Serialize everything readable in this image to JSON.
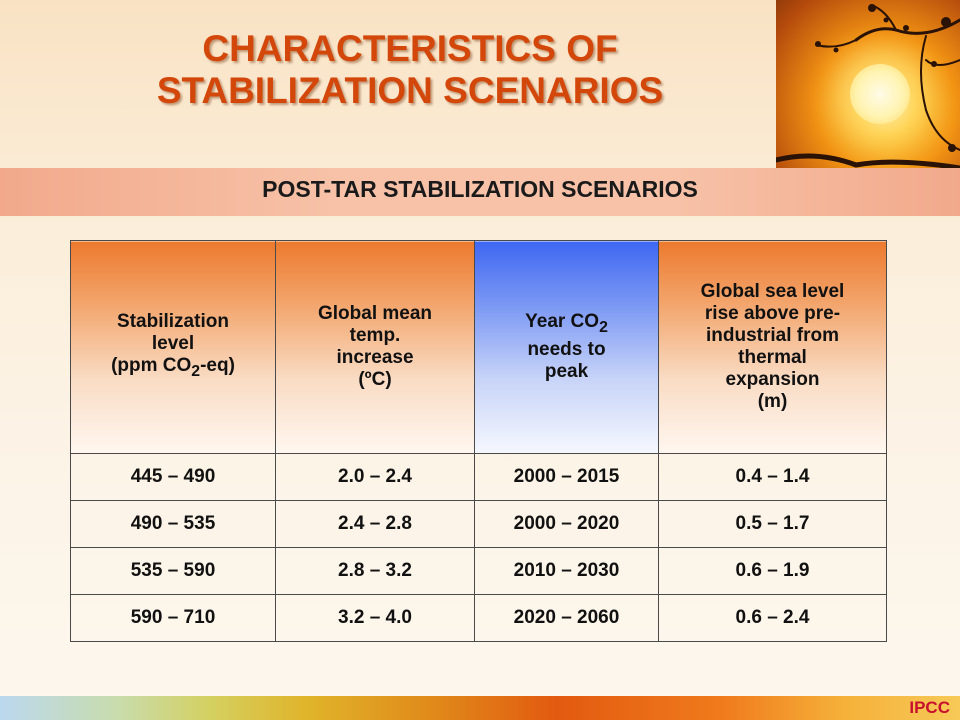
{
  "title_line1": "CHARACTERISTICS OF",
  "title_line2": "STABILIZATION SCENARIOS",
  "subtitle": "POST-TAR STABILIZATION SCENARIOS",
  "footer_logo": "IPCC",
  "table": {
    "headers": {
      "col1": {
        "line1": "Stabilization",
        "line2": "level",
        "line3_pre": "(ppm CO",
        "line3_sub": "2",
        "line3_post": "-eq)"
      },
      "col2": {
        "line1": "Global mean",
        "line2": "temp.",
        "line3": "increase",
        "line4": "(ºC)"
      },
      "col3": {
        "line1_pre": "Year CO",
        "line1_sub": "2",
        "line2": "needs to",
        "line3": "peak"
      },
      "col4": {
        "line1": "Global sea level",
        "line2": "rise above pre-",
        "line3": "industrial from",
        "line4": "thermal",
        "line5": "expansion",
        "line6": "(m)"
      }
    },
    "rows": [
      [
        "445 – 490",
        "2.0 – 2.4",
        "2000 – 2015",
        "0.4 – 1.4"
      ],
      [
        "490 – 535",
        "2.4 – 2.8",
        "2000 – 2020",
        "0.5 – 1.7"
      ],
      [
        "535 – 590",
        "2.8 – 3.2",
        "2010 – 2030",
        "0.6 – 1.9"
      ],
      [
        "590 – 710",
        "3.2 – 4.0",
        "2020 – 2060",
        "0.6 – 2.4"
      ]
    ]
  },
  "colors": {
    "title": "#d4470a",
    "header_orange": "#ec7a2e",
    "header_blue": "#3f67f2",
    "band": "#f7c2a8",
    "logo": "#c8102e"
  }
}
